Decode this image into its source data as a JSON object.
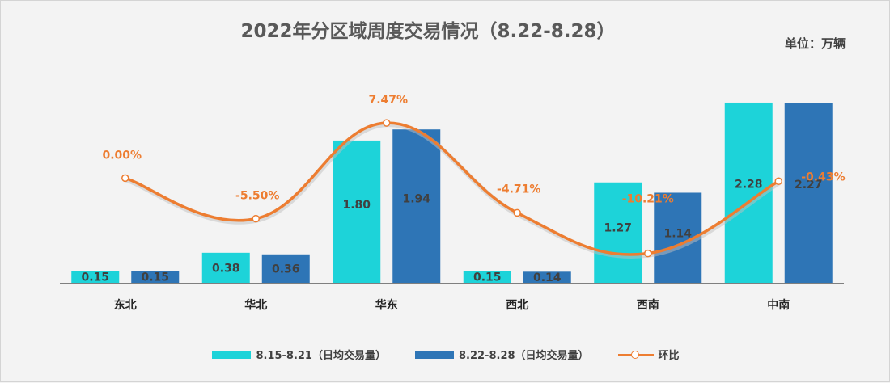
{
  "title": "2022年分区域周度交易情况（8.22-8.28）",
  "unit_label": "单位：万辆",
  "legend": {
    "series1": "8.15-8.21（日均交易量）",
    "series2": "8.22-8.28（日均交易量）",
    "line": "环比"
  },
  "colors": {
    "series1": "#1dd3d9",
    "series2": "#2e75b6",
    "line": "#ed7d31",
    "axis": "#595959",
    "text": "#404040"
  },
  "chart_data": {
    "type": "bar",
    "title": "2022年分区域周度交易情况（8.22-8.28）",
    "categories": [
      "东北",
      "华北",
      "华东",
      "西北",
      "西南",
      "中南"
    ],
    "series": [
      {
        "name": "8.15-8.21（日均交易量）",
        "values": [
          0.15,
          0.38,
          1.8,
          0.15,
          1.27,
          2.28
        ]
      },
      {
        "name": "8.22-8.28（日均交易量）",
        "values": [
          0.15,
          0.36,
          1.94,
          0.14,
          1.14,
          2.27
        ]
      }
    ],
    "bar_labels": [
      [
        "0.15",
        "0.38",
        "1.80",
        "0.15",
        "1.27",
        "2.28"
      ],
      [
        "0.15",
        "0.36",
        "1.94",
        "0.14",
        "1.14",
        "2.27"
      ]
    ],
    "line": {
      "name": "环比",
      "type": "line",
      "values": [
        0.0,
        -5.5,
        7.47,
        -4.71,
        -10.21,
        -0.43
      ],
      "labels": [
        "0.00%",
        "-5.50%",
        "7.47%",
        "-4.71%",
        "-10.21%",
        "-0.43%"
      ],
      "ylim": [
        -12,
        10
      ]
    },
    "ylim": [
      0,
      2.3
    ],
    "grid": false,
    "legend_position": "bottom"
  }
}
